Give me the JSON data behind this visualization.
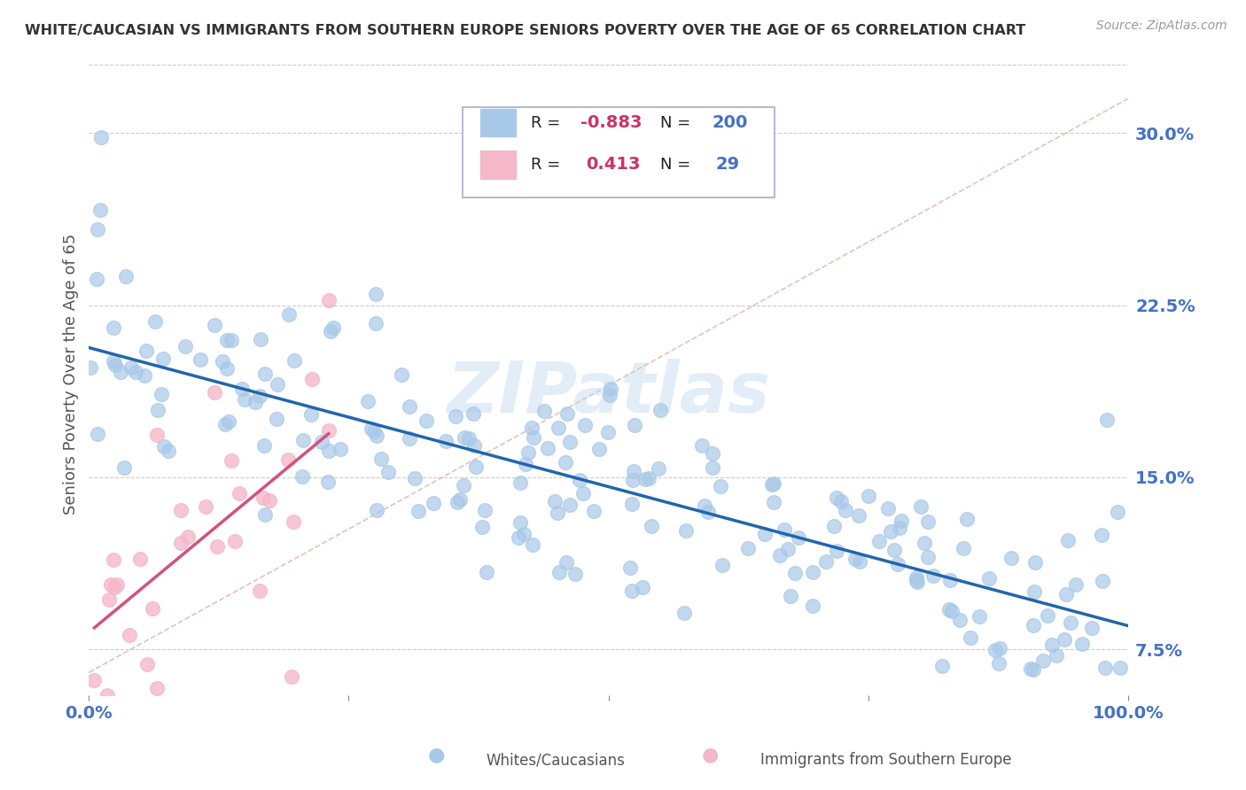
{
  "title": "WHITE/CAUCASIAN VS IMMIGRANTS FROM SOUTHERN EUROPE SENIORS POVERTY OVER THE AGE OF 65 CORRELATION CHART",
  "source": "Source: ZipAtlas.com",
  "ylabel": "Seniors Poverty Over the Age of 65",
  "xlim": [
    0.0,
    1.0
  ],
  "ylim": [
    0.055,
    0.335
  ],
  "yticks": [
    0.075,
    0.15,
    0.225,
    0.3
  ],
  "ytick_labels": [
    "7.5%",
    "15.0%",
    "22.5%",
    "30.0%"
  ],
  "xticks": [
    0.0,
    0.25,
    0.5,
    0.75,
    1.0
  ],
  "xtick_labels": [
    "0.0%",
    "",
    "",
    "",
    "100.0%"
  ],
  "blue_color": "#a8c8e8",
  "pink_color": "#f4b8c8",
  "blue_line_color": "#2166ac",
  "pink_line_color": "#d45080",
  "diagonal_color": "#e0b0b0",
  "watermark": "ZIPatlas",
  "background_color": "#ffffff",
  "grid_color": "#cccccc",
  "title_color": "#333333",
  "axis_label_color": "#555555",
  "tick_color": "#4472c4",
  "legend_R_color": "#cc3366",
  "legend_N_color": "#4472c4"
}
